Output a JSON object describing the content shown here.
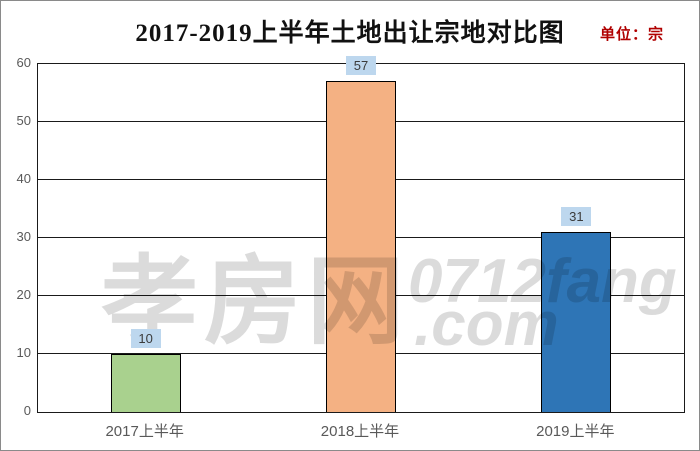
{
  "title": "2017-2019上半年土地出让宗地对比图",
  "unit_label": "单位：宗",
  "watermark": {
    "cjk": "孝房网",
    "latin_line1": "0712fang",
    "latin_line2": ".com"
  },
  "chart_data": {
    "type": "bar",
    "title": "2017-2019上半年土地出让宗地对比图",
    "unit": "宗",
    "categories": [
      "2017上半年",
      "2018上半年",
      "2019上半年"
    ],
    "values": [
      10,
      57,
      31
    ],
    "bar_colors": [
      "#A9D18E",
      "#F4B183",
      "#2E75B6"
    ],
    "bar_border_color": "#000000",
    "data_label_bg": "#BDD7EE",
    "data_label_color": "#3B3B3B",
    "xlabel": "",
    "ylabel": "",
    "ylim": [
      0,
      60
    ],
    "yticks": [
      0,
      10,
      20,
      30,
      40,
      50,
      60
    ],
    "grid": true,
    "legend_position": "none"
  },
  "colors": {
    "axis_text": "#595959",
    "gridline": "#1A1A1A",
    "unit_text": "#B00000",
    "watermark": "rgba(0,0,0,0.14)"
  }
}
